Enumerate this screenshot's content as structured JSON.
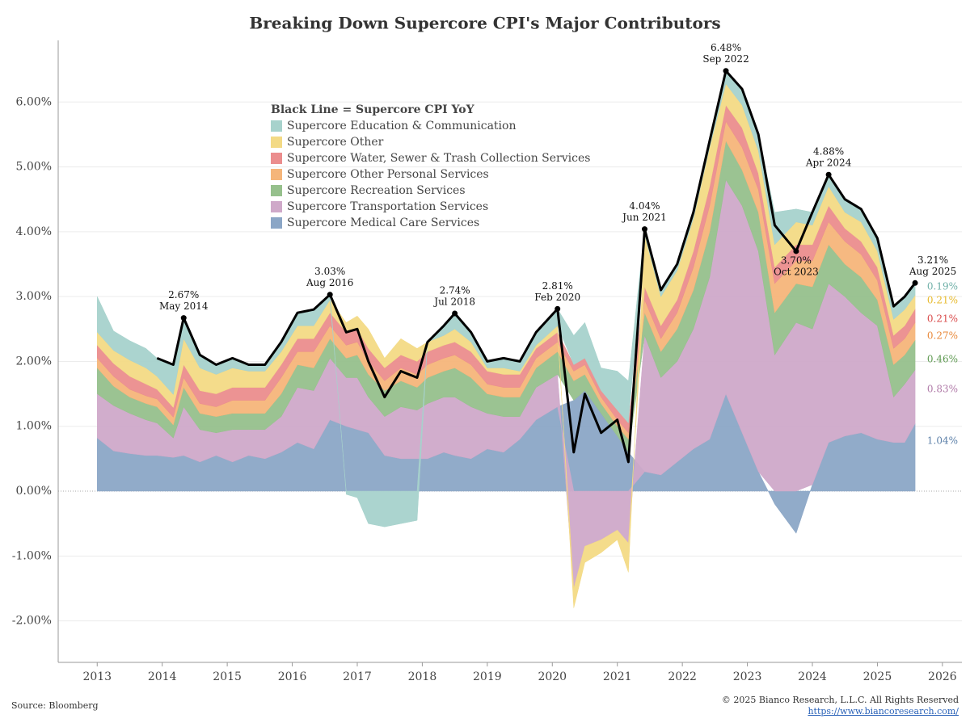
{
  "chart_data": {
    "type": "stacked_area_line",
    "title": "Breaking Down Supercore CPI's Major Contributors",
    "source": "Source: Bloomberg",
    "copyright": "© 2025 Bianco Research, L.L.C. All Rights Reserved",
    "url": "https://www.biancoresearch.com/",
    "xlim": [
      2012.4,
      2026.3
    ],
    "xticks": [
      2013,
      2014,
      2015,
      2016,
      2017,
      2018,
      2019,
      2020,
      2021,
      2022,
      2023,
      2024,
      2025,
      2026
    ],
    "ylim": [
      -2.64,
      6.95
    ],
    "yticks": [
      {
        "value": -2,
        "label": "-2.00%"
      },
      {
        "value": -1,
        "label": "-1.00%"
      },
      {
        "value": 0,
        "label": "0.00%"
      },
      {
        "value": 1,
        "label": "1.00%"
      },
      {
        "value": 2,
        "label": "2.00%"
      },
      {
        "value": 3,
        "label": "3.00%"
      },
      {
        "value": 4,
        "label": "4.00%"
      },
      {
        "value": 5,
        "label": "5.00%"
      },
      {
        "value": 6,
        "label": "6.00%"
      }
    ],
    "grid": true,
    "x": [
      2013.0,
      2013.25,
      2013.5,
      2013.75,
      2013.92,
      2014.17,
      2014.33,
      2014.58,
      2014.83,
      2015.08,
      2015.33,
      2015.58,
      2015.83,
      2016.08,
      2016.33,
      2016.58,
      2016.83,
      2017.0,
      2017.17,
      2017.42,
      2017.67,
      2017.92,
      2018.08,
      2018.33,
      2018.5,
      2018.75,
      2019.0,
      2019.25,
      2019.5,
      2019.75,
      2020.08,
      2020.33,
      2020.5,
      2020.75,
      2021.0,
      2021.17,
      2021.42,
      2021.67,
      2021.92,
      2022.17,
      2022.42,
      2022.67,
      2022.92,
      2023.17,
      2023.42,
      2023.75,
      2024.0,
      2024.25,
      2024.5,
      2024.75,
      2025.0,
      2025.25,
      2025.42,
      2025.58
    ],
    "series": [
      {
        "name": "Supercore Medical Care Services",
        "color": "#8ba6c6",
        "end_label": "1.04%",
        "label_color": "#5b7fa8",
        "values": [
          0.82,
          0.62,
          0.58,
          0.55,
          0.55,
          0.52,
          0.55,
          0.45,
          0.55,
          0.45,
          0.55,
          0.5,
          0.6,
          0.75,
          0.65,
          1.1,
          1.0,
          0.95,
          0.9,
          0.55,
          0.5,
          0.5,
          0.5,
          0.6,
          0.55,
          0.5,
          0.65,
          0.6,
          0.8,
          1.1,
          1.3,
          1.4,
          1.55,
          1.2,
          0.85,
          0.6,
          0.3,
          0.25,
          0.45,
          0.65,
          0.8,
          1.5,
          0.9,
          0.3,
          -0.2,
          -0.65,
          0.1,
          0.75,
          0.85,
          0.9,
          0.8,
          0.75,
          0.75,
          1.04
        ]
      },
      {
        "name": "Supercore Transportation Services",
        "color": "#cfa9c9",
        "end_label": "0.83%",
        "label_color": "#b07aa8",
        "values": [
          0.68,
          0.7,
          0.62,
          0.55,
          0.5,
          0.3,
          0.75,
          0.5,
          0.35,
          0.5,
          0.4,
          0.45,
          0.55,
          0.85,
          0.9,
          0.95,
          0.75,
          0.8,
          0.55,
          0.6,
          0.8,
          0.75,
          0.85,
          0.85,
          0.9,
          0.8,
          0.55,
          0.55,
          0.35,
          0.5,
          0.5,
          -1.5,
          -0.85,
          -0.75,
          -0.6,
          -0.8,
          2.1,
          1.5,
          1.55,
          1.85,
          2.5,
          3.3,
          3.5,
          3.4,
          2.1,
          2.6,
          2.4,
          2.45,
          2.15,
          1.85,
          1.75,
          0.7,
          0.9,
          0.83
        ]
      },
      {
        "name": "Supercore Recreation Services",
        "color": "#96c08c",
        "end_label": "0.46%",
        "label_color": "#5f9a52",
        "values": [
          0.4,
          0.3,
          0.25,
          0.25,
          0.25,
          0.2,
          0.3,
          0.25,
          0.25,
          0.25,
          0.25,
          0.25,
          0.35,
          0.35,
          0.35,
          0.3,
          0.3,
          0.35,
          0.35,
          0.4,
          0.4,
          0.35,
          0.4,
          0.4,
          0.45,
          0.45,
          0.3,
          0.3,
          0.3,
          0.3,
          0.35,
          0.3,
          0.25,
          0.15,
          0.15,
          0.2,
          0.35,
          0.4,
          0.5,
          0.6,
          0.7,
          0.6,
          0.55,
          0.6,
          0.65,
          0.6,
          0.65,
          0.6,
          0.5,
          0.55,
          0.4,
          0.5,
          0.45,
          0.46
        ]
      },
      {
        "name": "Supercore Other Personal Services",
        "color": "#f5b57a",
        "end_label": "0.27%",
        "label_color": "#e9893a",
        "values": [
          0.15,
          0.15,
          0.12,
          0.12,
          0.12,
          0.12,
          0.15,
          0.15,
          0.15,
          0.2,
          0.2,
          0.2,
          0.25,
          0.2,
          0.25,
          0.2,
          0.2,
          0.2,
          0.2,
          0.15,
          0.2,
          0.2,
          0.2,
          0.2,
          0.2,
          0.2,
          0.15,
          0.15,
          0.15,
          0.15,
          0.15,
          0.15,
          0.15,
          0.1,
          0.1,
          0.1,
          0.2,
          0.2,
          0.25,
          0.35,
          0.4,
          0.3,
          0.35,
          0.35,
          0.45,
          0.35,
          0.4,
          0.35,
          0.35,
          0.35,
          0.3,
          0.25,
          0.25,
          0.27
        ]
      },
      {
        "name": "Supercore Water, Sewer & Trash Collection Services",
        "color": "#eb8d8d",
        "end_label": "0.21%",
        "label_color": "#d94a4a",
        "values": [
          0.2,
          0.2,
          0.2,
          0.18,
          0.15,
          0.15,
          0.2,
          0.2,
          0.2,
          0.2,
          0.2,
          0.2,
          0.2,
          0.2,
          0.2,
          0.2,
          0.2,
          0.2,
          0.2,
          0.2,
          0.2,
          0.2,
          0.2,
          0.2,
          0.2,
          0.2,
          0.2,
          0.2,
          0.2,
          0.15,
          0.15,
          0.1,
          0.1,
          0.1,
          0.15,
          0.15,
          0.2,
          0.2,
          0.2,
          0.25,
          0.3,
          0.25,
          0.3,
          0.25,
          0.25,
          0.25,
          0.25,
          0.25,
          0.2,
          0.2,
          0.2,
          0.2,
          0.2,
          0.21
        ]
      },
      {
        "name": "Supercore Other",
        "color": "#f3da85",
        "end_label": "0.21%",
        "label_color": "#e7b92a",
        "values": [
          0.2,
          0.2,
          0.25,
          0.25,
          0.2,
          0.2,
          0.4,
          0.35,
          0.3,
          0.3,
          0.25,
          0.25,
          0.2,
          0.2,
          0.2,
          0.2,
          0.15,
          0.2,
          0.3,
          0.15,
          0.25,
          0.2,
          0.15,
          0.15,
          0.2,
          0.15,
          0.05,
          0.1,
          0.05,
          0.05,
          0.1,
          -0.3,
          -0.25,
          -0.2,
          -0.15,
          -0.45,
          0.8,
          0.45,
          0.45,
          0.5,
          0.6,
          0.33,
          0.35,
          0.35,
          0.35,
          0.35,
          0.3,
          0.3,
          0.25,
          0.3,
          0.25,
          0.25,
          0.25,
          0.21
        ]
      },
      {
        "name": "Supercore Education & Communication",
        "color": "#a7d2cc",
        "end_label": "0.19%",
        "label_color": "#6fb0a8",
        "values": [
          0.55,
          0.3,
          0.3,
          0.3,
          0.28,
          0.45,
          0.32,
          0.2,
          0.15,
          0.15,
          0.1,
          0.1,
          0.15,
          0.2,
          0.25,
          0.08,
          -0.05,
          -0.1,
          -0.5,
          -0.55,
          -0.5,
          -0.45,
          0.0,
          0.15,
          0.24,
          0.15,
          0.1,
          0.15,
          0.15,
          0.2,
          0.26,
          0.45,
          0.55,
          0.35,
          0.6,
          0.65,
          0.09,
          0.1,
          0.1,
          0.1,
          0.1,
          0.2,
          0.25,
          0.25,
          0.5,
          0.2,
          0.2,
          0.18,
          0.2,
          0.2,
          0.2,
          0.2,
          0.2,
          0.19
        ]
      }
    ],
    "line": {
      "name": "Black Line = Supercore CPI YoY",
      "color": "#000000",
      "values": [
        null,
        null,
        null,
        null,
        2.05,
        1.95,
        2.67,
        2.1,
        1.95,
        2.05,
        1.95,
        1.95,
        2.3,
        2.75,
        2.8,
        3.03,
        2.45,
        2.5,
        2.0,
        1.45,
        1.85,
        1.75,
        2.3,
        2.55,
        2.74,
        2.45,
        2.0,
        2.05,
        2.0,
        2.45,
        2.81,
        0.6,
        1.5,
        0.9,
        1.1,
        0.45,
        4.04,
        3.1,
        3.5,
        4.3,
        5.4,
        6.48,
        6.2,
        5.5,
        4.1,
        3.7,
        4.3,
        4.88,
        4.5,
        4.35,
        3.9,
        2.85,
        3.0,
        3.21
      ]
    },
    "annotations": [
      {
        "x": 2014.33,
        "y": 2.67,
        "label": "2.67%",
        "date": "May 2014"
      },
      {
        "x": 2016.58,
        "y": 3.03,
        "label": "3.03%",
        "date": "Aug 2016"
      },
      {
        "x": 2018.5,
        "y": 2.74,
        "label": "2.74%",
        "date": "Jul 2018"
      },
      {
        "x": 2020.08,
        "y": 2.81,
        "label": "2.81%",
        "date": "Feb 2020"
      },
      {
        "x": 2021.42,
        "y": 4.04,
        "label": "4.04%",
        "date": "Jun 2021"
      },
      {
        "x": 2022.67,
        "y": 6.48,
        "label": "6.48%",
        "date": "Sep 2022"
      },
      {
        "x": 2023.75,
        "y": 3.7,
        "label": "3.70%",
        "date": "Oct 2023"
      },
      {
        "x": 2024.25,
        "y": 4.88,
        "label": "4.88%",
        "date": "Apr 2024"
      },
      {
        "x": 2025.58,
        "y": 3.21,
        "label": "3.21%",
        "date": "Aug 2025"
      }
    ]
  }
}
